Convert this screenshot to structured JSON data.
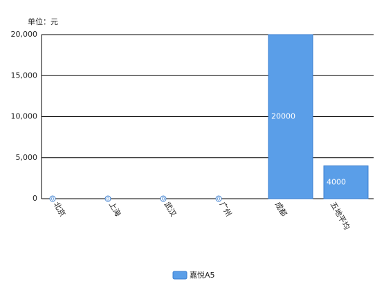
{
  "chart_data": {
    "type": "bar",
    "y_label": "单位：元",
    "categories": [
      "北京",
      "上海",
      "武汉",
      "广州",
      "成都",
      "五地平均"
    ],
    "series": [
      {
        "name": "嘉悦A5",
        "color": "#5a9ee8",
        "values": [
          0,
          0,
          0,
          0,
          20000,
          4000
        ]
      }
    ],
    "ylim": [
      0,
      20000
    ],
    "yticks": [
      0,
      {
        "value": 5000,
        "label": "5,000"
      },
      {
        "value": 10000,
        "label": "10,000"
      },
      {
        "value": 15000,
        "label": "15,000"
      },
      {
        "value": 20000,
        "label": "20,000"
      }
    ],
    "grid": true
  }
}
